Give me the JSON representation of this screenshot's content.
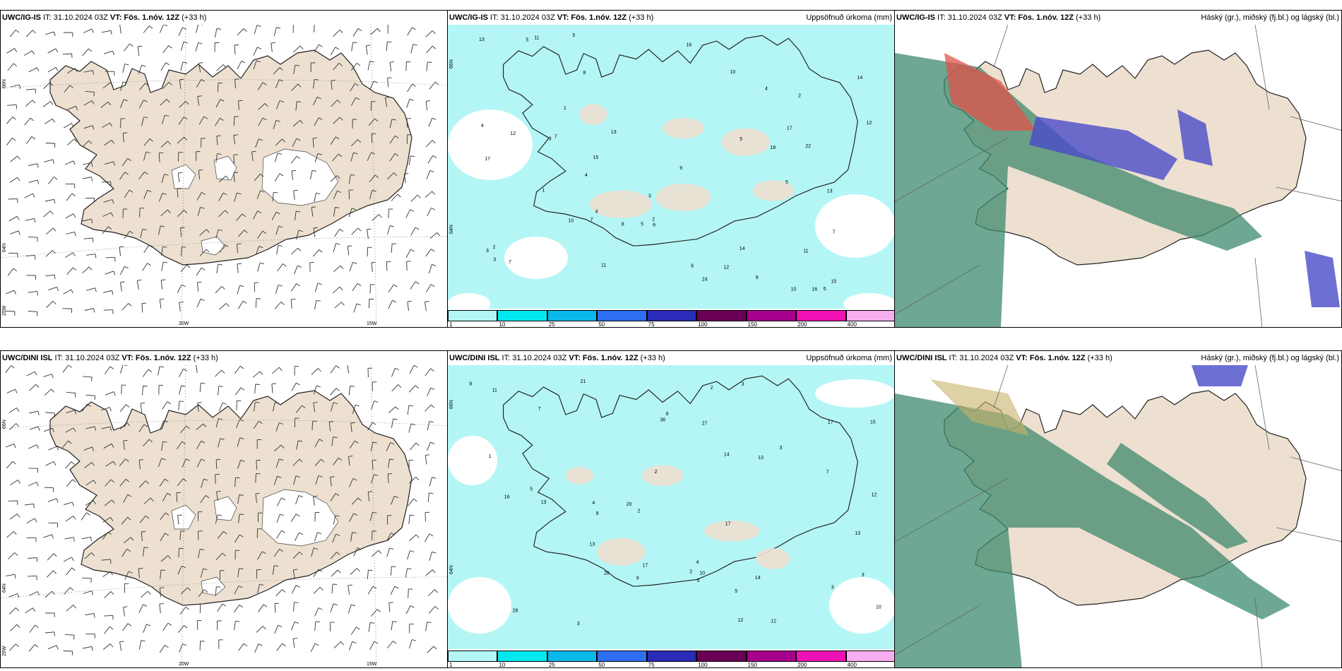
{
  "rows": [
    {
      "model": "UWC/IG-IS",
      "init": " IT: 31.10.2024 03Z ",
      "vt_label": "VT:",
      "valid": " Fös. 1.nóv. 12Z",
      "lead": " (+33 h)"
    },
    {
      "model": "UWC/DINI ISL",
      "init": " IT: 31.10.2024 03Z ",
      "vt_label": "VT:",
      "valid": " Fös. 1.nóv. 12Z",
      "lead": " (+33 h)"
    }
  ],
  "precip_title": "Uppsöfnuð úrkoma (mm)",
  "cloud_title": "Háský (gr.), miðský (fj.bl.) og lágský (bl.)",
  "axis_labels": {
    "lat66": "66N",
    "lat64": "64N",
    "lon25": "25W",
    "lon20": "20W",
    "lon15": "15W"
  },
  "precip_legend": {
    "ticks": [
      "1",
      "10",
      "25",
      "50",
      "75",
      "100",
      "150",
      "200",
      "400"
    ],
    "colors": [
      "#b4f6f6",
      "#00e9ee",
      "#0bb8ea",
      "#2e6ef0",
      "#2a2bb8",
      "#6a0055",
      "#a6008c",
      "#f010b4",
      "#f6aef0"
    ]
  },
  "colors": {
    "land": "#ede0d0",
    "sea_precip": "#b4f6f6",
    "high_cloud": "#3e8a6e",
    "mid_cloud": "#4a4bc8",
    "low_cloud": "#e2524a"
  },
  "precip_labels_top": [
    "3",
    "3",
    "5",
    "5",
    "6",
    "8",
    "5",
    "4",
    "7",
    "18",
    "22",
    "16",
    "13",
    "10",
    "15",
    "14",
    "9",
    "12",
    "14",
    "13",
    "16",
    "7",
    "12",
    "10",
    "11",
    "5",
    "6",
    "2",
    "2",
    "3",
    "4",
    "8",
    "7",
    "7",
    "4",
    "4",
    "12",
    "11",
    "1",
    "11",
    "17",
    "15",
    "13",
    "9",
    "6",
    "3",
    "2",
    "1",
    "5",
    "10",
    "24",
    "17"
  ],
  "precip_labels_bottom": [
    "3",
    "3",
    "4",
    "2",
    "14",
    "13",
    "12",
    "10",
    "7",
    "5",
    "5",
    "4",
    "3",
    "2",
    "17",
    "28",
    "36",
    "17",
    "28",
    "21",
    "15",
    "12",
    "13",
    "11",
    "9",
    "7",
    "6",
    "13",
    "8",
    "5",
    "10",
    "12",
    "14",
    "17",
    "13",
    "9",
    "2",
    "3",
    "1",
    "20",
    "27",
    "16",
    "3",
    "2"
  ]
}
